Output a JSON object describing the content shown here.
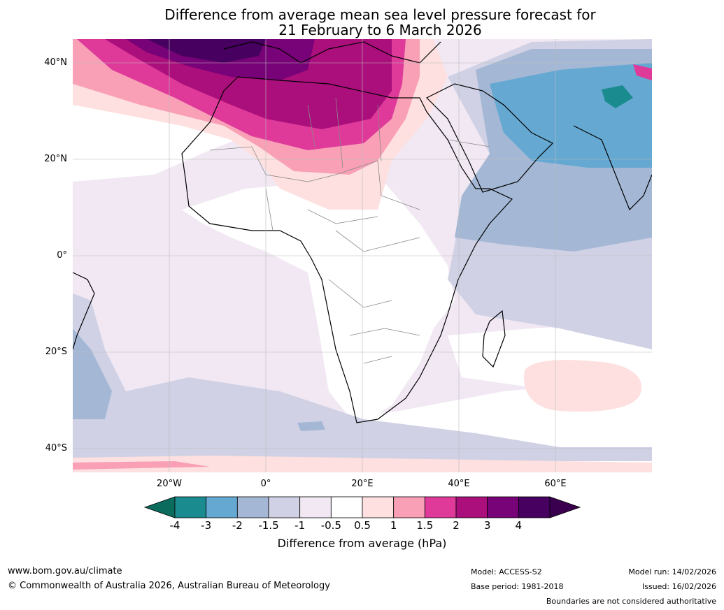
{
  "title": {
    "line1": "Difference from average mean sea level pressure forecast for",
    "line2": "21 February to 6 March 2026"
  },
  "axes": {
    "lat_ticks": [
      "40°N",
      "20°N",
      "0°",
      "20°S",
      "40°S"
    ],
    "lon_ticks": [
      "20°W",
      "0°",
      "20°E",
      "40°E",
      "60°E"
    ]
  },
  "colorbar": {
    "ticks": [
      "-4",
      "-3",
      "-2",
      "-1.5",
      "-1",
      "-0.5",
      "0.5",
      "1",
      "1.5",
      "2",
      "3",
      "4"
    ],
    "colors": [
      "#1a8c8f",
      "#65a8d2",
      "#a4b8d6",
      "#d0d1e5",
      "#f1e8f3",
      "#ffffff",
      "#fde0df",
      "#f9a0b7",
      "#df3a9a",
      "#ab0f7c",
      "#780277",
      "#470060"
    ],
    "extend_low": "#0b6b5c",
    "extend_high": "#3a004f",
    "label": "Difference from average (hPa)"
  },
  "footer": {
    "website": "www.bom.gov.au/climate",
    "copyright": "© Commonwealth of Australia 2026, Australian Bureau of Meteorology",
    "model": "Model: ACCESS-S2",
    "base_period": "Base period: 1981-2018",
    "model_run": "Model run: 14/02/2026",
    "issued": "Issued: 16/02/2026",
    "disclaimer": "Boundaries are not considered authoritative"
  }
}
